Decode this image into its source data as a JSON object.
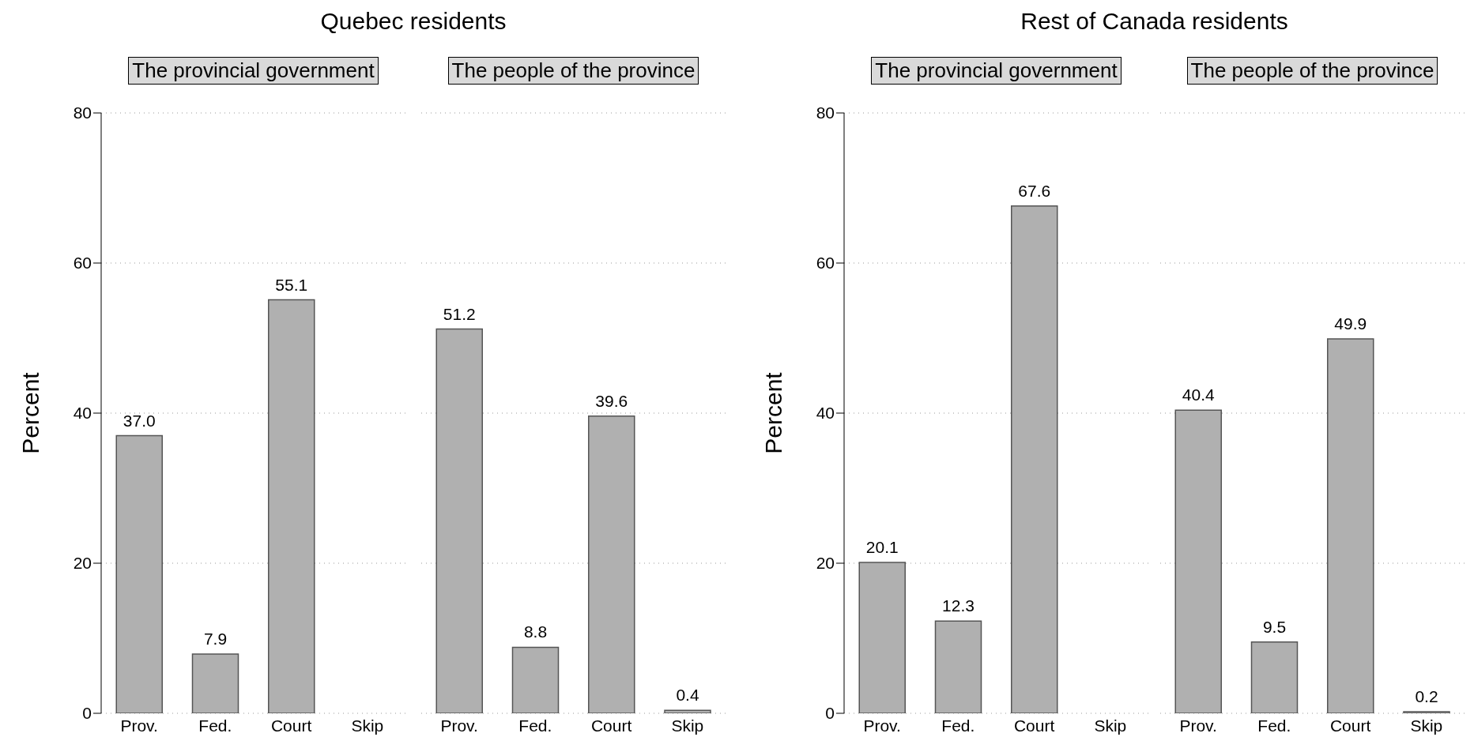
{
  "chart_data": [
    {
      "type": "bar",
      "title": "Quebec residents",
      "subtitle": "The provincial government",
      "ylabel": "Percent",
      "categories": [
        "Prov.",
        "Fed.",
        "Court",
        "Skip"
      ],
      "values": [
        37.0,
        7.9,
        55.1,
        0
      ],
      "value_labels": [
        "37.0",
        "7.9",
        "55.1",
        null
      ],
      "color": "#b0b0b0",
      "ylim": [
        0,
        80
      ],
      "yticks": [
        0,
        20,
        40,
        60,
        80
      ],
      "grid": "y"
    },
    {
      "type": "bar",
      "subtitle": "The people of the province",
      "categories": [
        "Prov.",
        "Fed.",
        "Court",
        "Skip"
      ],
      "values": [
        51.2,
        8.8,
        39.6,
        0.4
      ],
      "value_labels": [
        "51.2",
        "8.8",
        "39.6",
        "0.4"
      ],
      "color": "#b0b0b0",
      "ylim": [
        0,
        80
      ],
      "yticks": [
        0,
        20,
        40,
        60,
        80
      ],
      "grid": "y",
      "tick_labels": "x"
    },
    {
      "type": "bar",
      "title": "Rest of Canada residents",
      "subtitle": "The provincial government",
      "ylabel": "Percent",
      "categories": [
        "Prov.",
        "Fed.",
        "Court",
        "Skip"
      ],
      "values": [
        20.1,
        12.3,
        67.6,
        0
      ],
      "value_labels": [
        "20.1",
        "12.3",
        "67.6",
        null
      ],
      "color": "#b0b0b0",
      "ylim": [
        0,
        80
      ],
      "yticks": [
        0,
        20,
        40,
        60,
        80
      ],
      "grid": "y"
    },
    {
      "type": "bar",
      "subtitle": "The people of the province",
      "categories": [
        "Prov.",
        "Fed.",
        "Court",
        "Skip"
      ],
      "values": [
        40.4,
        9.5,
        49.9,
        0.2
      ],
      "value_labels": [
        "40.4",
        "9.5",
        "49.9",
        "0.2"
      ],
      "color": "#b0b0b0",
      "ylim": [
        0,
        80
      ],
      "yticks": [
        0,
        20,
        40,
        60,
        80
      ],
      "grid": "y",
      "tick_labels": "x"
    }
  ]
}
